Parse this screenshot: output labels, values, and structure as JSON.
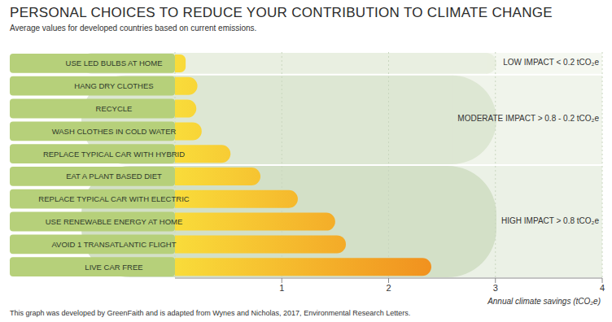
{
  "chart_data": {
    "type": "bar",
    "orientation": "horizontal",
    "title": "PERSONAL CHOICES TO REDUCE YOUR CONTRIBUTION TO CLIMATE CHANGE",
    "subtitle": "Average values for developed countries based on current emissions.",
    "x_label": "Annual climate savings (tCO₂e)",
    "categories": [
      "USE LED BULBS AT HOME",
      "HANG DRY CLOTHES",
      "RECYCLE",
      "WASH CLOTHES IN COLD WATER",
      "REPLACE TYPICAL CAR WITH HYBRID",
      "EAT A PLANT BASED DIET",
      "REPLACE TYPICAL CAR WITH ELECTRIC",
      "USE RENEWABLE ENERGY AT HOME",
      "AVOID 1 TRANSATLANTIC FLIGHT",
      "LIVE CAR FREE"
    ],
    "values": [
      0.1,
      0.21,
      0.2,
      0.25,
      0.52,
      0.8,
      1.15,
      1.5,
      1.6,
      2.4
    ],
    "color": "#f08a1c",
    "xlim": [
      0,
      4
    ],
    "xticks": [
      1,
      2,
      3,
      4
    ],
    "grid": true,
    "annotations": [
      "LOW IMPACT < 0.2 tCO₂e",
      "MODERATE IMPACT > 0.8 - 0.2 tCO₂e",
      "HIGH IMPACT > 0.8 tCO₂e"
    ],
    "note": "This graph was developed by GreenFaith and is adapted from Wynes and Nicholas, 2017, Environmental Research Letters."
  }
}
